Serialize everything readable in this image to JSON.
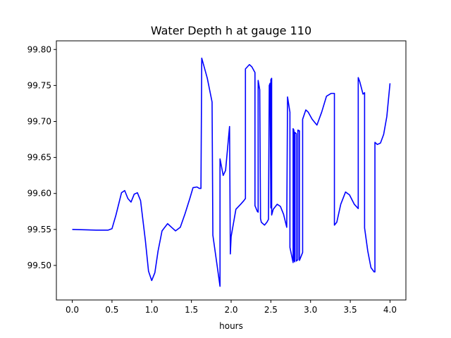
{
  "chart_data": {
    "type": "line",
    "title": "Water Depth h at gauge 110",
    "xlabel": "hours",
    "ylabel": "",
    "xlim": [
      -0.2,
      4.2
    ],
    "ylim": [
      99.452,
      99.812
    ],
    "xticks": [
      0.0,
      0.5,
      1.0,
      1.5,
      2.0,
      2.5,
      3.0,
      3.5,
      4.0
    ],
    "xtick_labels": [
      "0.0",
      "0.5",
      "1.0",
      "1.5",
      "2.0",
      "2.5",
      "3.0",
      "3.5",
      "4.0"
    ],
    "yticks": [
      99.5,
      99.55,
      99.6,
      99.65,
      99.7,
      99.75,
      99.8
    ],
    "ytick_labels": [
      "99.50",
      "99.55",
      "99.60",
      "99.65",
      "99.70",
      "99.75",
      "99.80"
    ],
    "grid": false,
    "legend": "none",
    "series": [
      {
        "color": "#0000ff",
        "x": [
          0.0,
          0.3,
          0.45,
          0.5,
          0.55,
          0.62,
          0.66,
          0.7,
          0.74,
          0.78,
          0.82,
          0.86,
          0.92,
          0.96,
          1.0,
          1.04,
          1.08,
          1.13,
          1.2,
          1.26,
          1.3,
          1.36,
          1.42,
          1.48,
          1.52,
          1.57,
          1.6,
          1.62,
          1.63,
          1.63,
          1.7,
          1.76,
          1.77,
          1.86,
          1.86,
          1.9,
          1.93,
          1.98,
          1.99,
          2.0,
          2.06,
          2.12,
          2.16,
          2.18,
          2.18,
          2.23,
          2.26,
          2.3,
          2.3,
          2.33,
          2.34,
          2.34,
          2.36,
          2.37,
          2.38,
          2.42,
          2.45,
          2.47,
          2.48,
          2.49,
          2.5,
          2.5,
          2.51,
          2.51,
          2.53,
          2.58,
          2.62,
          2.66,
          2.7,
          2.71,
          2.74,
          2.74,
          2.78,
          2.78,
          2.79,
          2.79,
          2.8,
          2.8,
          2.82,
          2.82,
          2.84,
          2.84,
          2.86,
          2.86,
          2.9,
          2.9,
          2.94,
          2.97,
          3.02,
          3.08,
          3.14,
          3.2,
          3.26,
          3.3,
          3.3,
          3.33,
          3.38,
          3.44,
          3.49,
          3.55,
          3.6,
          3.6,
          3.62,
          3.66,
          3.68,
          3.68,
          3.72,
          3.76,
          3.8,
          3.81,
          3.81,
          3.84,
          3.88,
          3.92,
          3.96,
          4.0
        ],
        "y": [
          99.55,
          99.549,
          99.549,
          99.551,
          99.57,
          99.601,
          99.604,
          99.593,
          99.588,
          99.599,
          99.601,
          99.59,
          99.535,
          99.492,
          99.479,
          99.49,
          99.52,
          99.548,
          99.558,
          99.552,
          99.548,
          99.553,
          99.572,
          99.593,
          99.608,
          99.609,
          99.607,
          99.607,
          99.788,
          99.788,
          99.76,
          99.727,
          99.542,
          99.471,
          99.648,
          99.625,
          99.632,
          99.693,
          99.516,
          99.54,
          99.578,
          99.585,
          99.59,
          99.593,
          99.773,
          99.779,
          99.776,
          99.768,
          99.583,
          99.575,
          99.574,
          99.757,
          99.744,
          99.565,
          99.56,
          99.556,
          99.56,
          99.564,
          99.75,
          99.753,
          99.58,
          99.758,
          99.76,
          99.57,
          99.578,
          99.585,
          99.582,
          99.571,
          99.553,
          99.734,
          99.713,
          99.525,
          99.504,
          99.69,
          99.688,
          99.508,
          99.505,
          99.685,
          99.683,
          99.506,
          99.508,
          99.688,
          99.687,
          99.507,
          99.518,
          99.703,
          99.716,
          99.713,
          99.703,
          99.695,
          99.713,
          99.735,
          99.739,
          99.739,
          99.556,
          99.56,
          99.585,
          99.602,
          99.598,
          99.585,
          99.579,
          99.761,
          99.755,
          99.738,
          99.74,
          99.552,
          99.52,
          99.497,
          99.491,
          99.491,
          99.671,
          99.668,
          99.67,
          99.682,
          99.707,
          99.753
        ]
      }
    ]
  }
}
